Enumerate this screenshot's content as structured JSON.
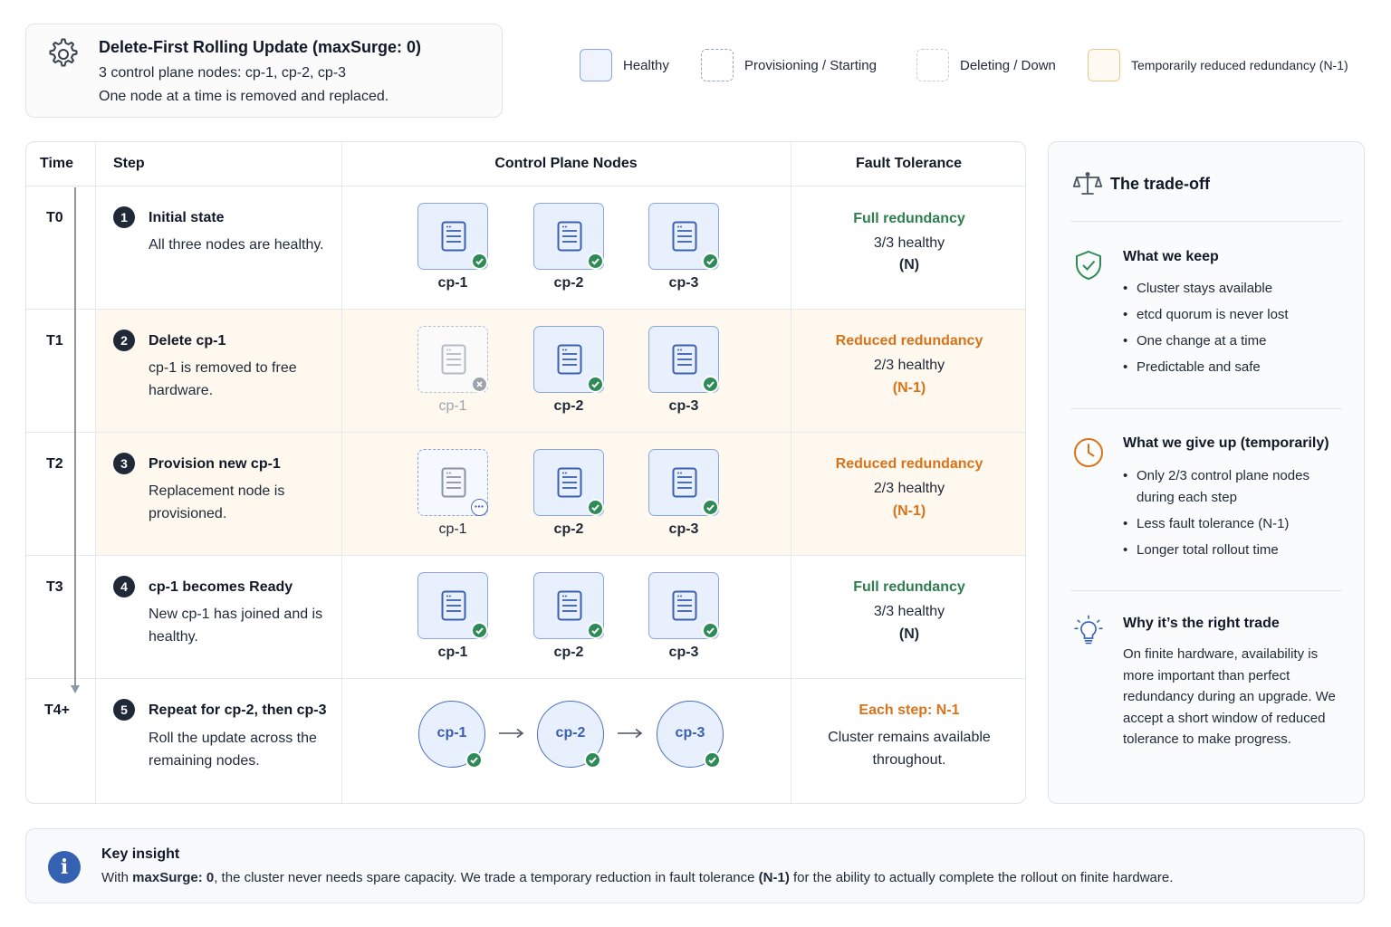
{
  "header": {
    "title": "Delete-First Rolling Update (maxSurge: 0)",
    "line1": "3 control plane nodes: cp-1, cp-2, cp-3",
    "line2": "One node at a time is removed and replaced."
  },
  "legend": [
    {
      "label": "Healthy",
      "style": "healthy"
    },
    {
      "label": "Provisioning / Starting",
      "style": "provisioning"
    },
    {
      "label": "Deleting / Down",
      "style": "deleting"
    },
    {
      "label": "Temporarily reduced redundancy (N-1)",
      "style": "reduced"
    }
  ],
  "table": {
    "headers": {
      "time": "Time",
      "step": "Step",
      "nodes": "Control Plane Nodes",
      "fault": "Fault Tolerance"
    },
    "rows": [
      {
        "time": "T0",
        "num": "1",
        "title": "Initial state",
        "desc": "All three nodes are healthy.",
        "nodes": [
          {
            "label": "cp-1",
            "state": "healthy"
          },
          {
            "label": "cp-2",
            "state": "healthy"
          },
          {
            "label": "cp-3",
            "state": "healthy"
          }
        ],
        "ft_title": "Full redundancy",
        "ft_health": "3/3 healthy",
        "ft_n": "(N)"
      },
      {
        "time": "T1",
        "num": "2",
        "title": "Delete cp-1",
        "desc": "cp-1 is removed to free hardware.",
        "nodes": [
          {
            "label": "cp-1",
            "state": "deleting"
          },
          {
            "label": "cp-2",
            "state": "healthy"
          },
          {
            "label": "cp-3",
            "state": "healthy"
          }
        ],
        "ft_title": "Reduced redundancy",
        "ft_health": "2/3 healthy",
        "ft_n": "(N-1)"
      },
      {
        "time": "T2",
        "num": "3",
        "title": "Provision new cp-1",
        "desc": "Replacement node is provisioned.",
        "nodes": [
          {
            "label": "cp-1",
            "state": "provisioning"
          },
          {
            "label": "cp-2",
            "state": "healthy"
          },
          {
            "label": "cp-3",
            "state": "healthy"
          }
        ],
        "ft_title": "Reduced redundancy",
        "ft_health": "2/3 healthy",
        "ft_n": "(N-1)"
      },
      {
        "time": "T3",
        "num": "4",
        "title": "cp-1 becomes Ready",
        "desc": "New cp-1 has joined and is healthy.",
        "nodes": [
          {
            "label": "cp-1",
            "state": "healthy"
          },
          {
            "label": "cp-2",
            "state": "healthy"
          },
          {
            "label": "cp-3",
            "state": "healthy"
          }
        ],
        "ft_title": "Full redundancy",
        "ft_health": "3/3 healthy",
        "ft_n": "(N)"
      },
      {
        "time": "T4+",
        "num": "5",
        "title": "Repeat for cp-2, then cp-3",
        "desc": "Roll the update across the remaining nodes.",
        "nodes": [
          {
            "label": "cp-1",
            "state": "healthy"
          },
          {
            "label": "cp-2",
            "state": "healthy"
          },
          {
            "label": "cp-3",
            "state": "healthy"
          }
        ],
        "ft_title": "Each step: N-1",
        "ft_line1": "Cluster remains available",
        "ft_line2": "throughout."
      }
    ]
  },
  "tradeoff": {
    "title": "The trade-off",
    "keep": {
      "title": "What we keep",
      "items": [
        "Cluster stays available",
        "etcd quorum is never lost",
        "One change at a time",
        "Predictable and safe"
      ]
    },
    "giveup": {
      "title": "What we give up (temporarily)",
      "items": [
        "Only 2/3 control plane nodes during each step",
        "Less fault tolerance (N-1)",
        "Longer total rollout time"
      ]
    },
    "why": {
      "title": "Why it’s the right trade",
      "text": "On finite hardware, availability is more important than perfect redundancy during an upgrade. We accept a short window of reduced tolerance to make progress."
    }
  },
  "insight": {
    "icon": "i",
    "title": "Key insight",
    "text_a": "With ",
    "text_b": "maxSurge: 0",
    "text_c": ", the cluster never needs spare capacity. We trade a temporary reduction in fault tolerance ",
    "text_d": "(N-1)",
    "text_e": " for the ability to actually complete the rollout on finite hardware."
  },
  "colors": {
    "accent_blue": "#3561b3",
    "healthy_green": "#2e8b57",
    "reduced_orange": "#d9731a",
    "reduced_row_bg": "#fff8ef"
  },
  "icons": {
    "header": "gear-icon",
    "node": "server-icon",
    "tradeoff": "scale-icon",
    "keep": "shield-check-icon",
    "giveup": "clock-icon",
    "why": "lightbulb-icon",
    "insight": "info-icon"
  }
}
